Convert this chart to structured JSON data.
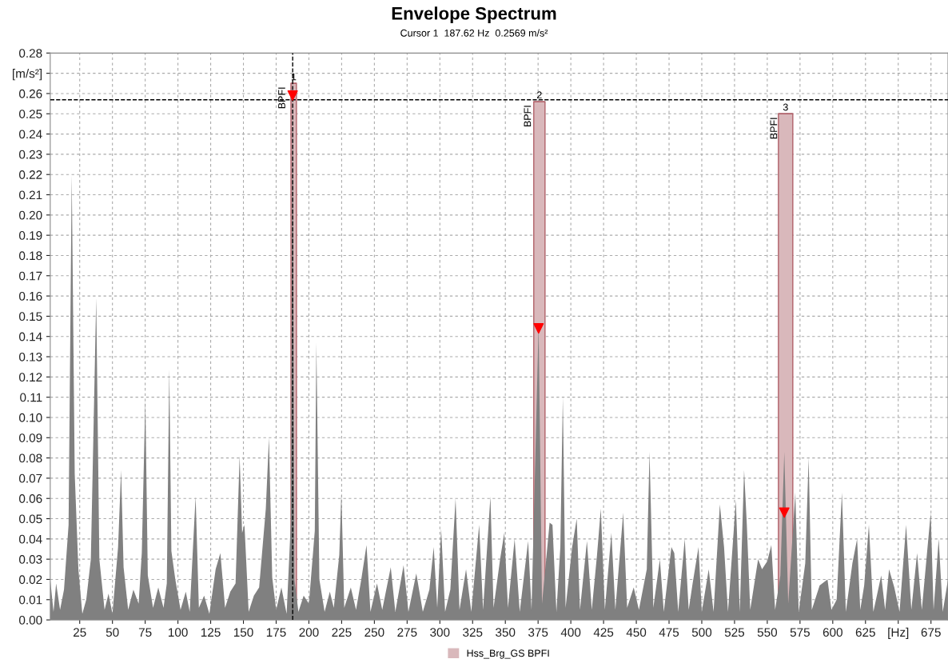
{
  "chart_data": {
    "type": "area",
    "title": "Envelope Spectrum",
    "subtitle": "Cursor 1  187.62 Hz  0.2569 m/s²",
    "xlim": [
      2.5,
      688
    ],
    "ylim": [
      0,
      0.28
    ],
    "xticks": [
      25,
      50,
      75,
      100,
      125,
      150,
      175,
      200,
      225,
      250,
      275,
      300,
      325,
      350,
      375,
      400,
      425,
      450,
      475,
      500,
      525,
      550,
      575,
      600,
      625,
      {
        "value": 650,
        "label": "[Hz]"
      },
      675
    ],
    "yticks": [
      {
        "value": 0.0,
        "label": "0.00"
      },
      {
        "value": 0.01,
        "label": "0.01"
      },
      {
        "value": 0.02,
        "label": "0.02"
      },
      {
        "value": 0.03,
        "label": "0.03"
      },
      {
        "value": 0.04,
        "label": "0.04"
      },
      {
        "value": 0.05,
        "label": "0.05"
      },
      {
        "value": 0.06,
        "label": "0.06"
      },
      {
        "value": 0.07,
        "label": "0.07"
      },
      {
        "value": 0.08,
        "label": "0.08"
      },
      {
        "value": 0.09,
        "label": "0.09"
      },
      {
        "value": 0.1,
        "label": "0.10"
      },
      {
        "value": 0.11,
        "label": "0.11"
      },
      {
        "value": 0.12,
        "label": "0.12"
      },
      {
        "value": 0.13,
        "label": "0.13"
      },
      {
        "value": 0.14,
        "label": "0.14"
      },
      {
        "value": 0.15,
        "label": "0.15"
      },
      {
        "value": 0.16,
        "label": "0.16"
      },
      {
        "value": 0.17,
        "label": "0.17"
      },
      {
        "value": 0.18,
        "label": "0.18"
      },
      {
        "value": 0.19,
        "label": "0.19"
      },
      {
        "value": 0.2,
        "label": "0.20"
      },
      {
        "value": 0.21,
        "label": "0.21"
      },
      {
        "value": 0.22,
        "label": "0.22"
      },
      {
        "value": 0.23,
        "label": "0.23"
      },
      {
        "value": 0.24,
        "label": "0.24"
      },
      {
        "value": 0.25,
        "label": "0.25"
      },
      {
        "value": 0.26,
        "label": "0.26"
      },
      {
        "value": 0.27,
        "label": "[m/s²]"
      },
      {
        "value": 0.28,
        "label": "0.28"
      }
    ],
    "grid": true,
    "legend": "bottom",
    "ref_lines": [
      {
        "axis": "y",
        "value": 0.2569,
        "color": "#000000",
        "line_style": "dashed"
      },
      {
        "axis": "x",
        "value": 187.62,
        "color": "#000000",
        "line_style": "dashed"
      }
    ],
    "annotations": [
      {
        "text": "BPFI",
        "x": 188.4,
        "y": 0.265
      },
      {
        "text": "BPFI",
        "x": 376,
        "y": 0.256
      },
      {
        "text": "BPFI",
        "x": 564,
        "y": 0.25
      },
      {
        "text": "1",
        "x": 188.4,
        "y": 0.265
      },
      {
        "text": "2",
        "x": 376,
        "y": 0.256
      },
      {
        "text": "3",
        "x": 564,
        "y": 0.25
      }
    ],
    "series": [
      {
        "color": "#808080",
        "x": [
          2.5,
          5,
          7,
          10,
          13,
          16.5,
          18.9,
          21.2,
          24,
          27,
          30,
          33.5,
          37.6,
          40,
          44,
          47,
          50,
          54.3,
          56.6,
          58.5,
          62,
          66,
          70,
          72.4,
          75.1,
          77,
          81,
          85,
          89,
          91.5,
          93.4,
          95,
          98,
          102,
          106,
          109,
          111.9,
          113.5,
          116,
          120,
          124,
          128.8,
          132.4,
          136,
          140,
          144,
          147.1,
          149,
          150.8,
          154,
          158,
          162,
          167.1,
          169.5,
          172,
          175,
          179,
          183,
          186.2,
          187.6,
          189,
          192,
          196,
          200,
          204.5,
          205.7,
          208,
          212,
          216,
          219,
          223.2,
          224.8,
          227,
          232,
          236,
          240,
          244,
          247,
          252,
          256,
          262.5,
          266,
          272.3,
          276,
          282,
          287,
          292,
          295.3,
          298,
          301,
          304,
          308,
          312,
          315,
          320,
          324,
          330,
          333,
          338.6,
          341,
          346,
          349.2,
          352,
          357.1,
          361,
          367.4,
          370,
          375.4,
          378,
          383.8,
          386,
          389,
          392,
          393.9,
          396,
          401,
          404.5,
          407,
          412.3,
          416,
          420,
          422.9,
          426,
          431,
          434,
          440,
          443,
          448,
          452,
          458,
          460.1,
          463,
          468,
          471,
          476.8,
          479,
          482,
          487,
          490,
          493,
          497.5,
          500,
          505.3,
          509,
          513.8,
          517,
          520,
          526,
          529,
          532.3,
          534.4,
          537,
          543,
          546,
          550,
          553.1,
          556,
          560,
          563,
          566,
          571.4,
          574,
          579,
          581.6,
          584,
          590,
          596,
          599,
          603,
          607,
          610,
          615,
          618.6,
          621,
          624,
          627.6,
          631,
          637,
          640,
          643,
          647,
          651,
          656,
          660,
          664.4,
          668,
          674.8,
          677,
          680.9,
          684,
          688
        ],
        "values": [
          0.02,
          0.004,
          0.018,
          0.005,
          0.015,
          0.047,
          0.22,
          0.072,
          0.025,
          0.003,
          0.01,
          0.03,
          0.159,
          0.03,
          0.005,
          0.013,
          0.003,
          0.036,
          0.074,
          0.026,
          0.005,
          0.015,
          0.008,
          0.033,
          0.109,
          0.022,
          0.006,
          0.016,
          0.006,
          0.018,
          0.124,
          0.034,
          0.02,
          0.005,
          0.014,
          0.004,
          0.041,
          0.061,
          0.006,
          0.012,
          0.003,
          0.025,
          0.033,
          0.006,
          0.014,
          0.018,
          0.081,
          0.043,
          0.047,
          0.004,
          0.012,
          0.016,
          0.055,
          0.09,
          0.021,
          0.005,
          0.016,
          0.003,
          0.048,
          0.26,
          0.02,
          0.004,
          0.012,
          0.008,
          0.044,
          0.137,
          0.02,
          0.004,
          0.014,
          0.006,
          0.032,
          0.063,
          0.006,
          0.016,
          0.005,
          0.02,
          0.037,
          0.004,
          0.018,
          0.005,
          0.026,
          0.004,
          0.027,
          0.004,
          0.023,
          0.004,
          0.015,
          0.036,
          0.006,
          0.045,
          0.004,
          0.015,
          0.06,
          0.005,
          0.025,
          0.004,
          0.047,
          0.005,
          0.061,
          0.006,
          0.03,
          0.043,
          0.006,
          0.04,
          0.004,
          0.039,
          0.005,
          0.146,
          0.008,
          0.048,
          0.047,
          0.004,
          0.036,
          0.11,
          0.006,
          0.036,
          0.05,
          0.005,
          0.039,
          0.005,
          0.032,
          0.055,
          0.005,
          0.043,
          0.005,
          0.053,
          0.006,
          0.016,
          0.005,
          0.025,
          0.083,
          0.006,
          0.03,
          0.004,
          0.036,
          0.033,
          0.004,
          0.04,
          0.005,
          0.018,
          0.036,
          0.004,
          0.025,
          0.004,
          0.057,
          0.036,
          0.004,
          0.059,
          0.004,
          0.074,
          0.047,
          0.005,
          0.03,
          0.025,
          0.029,
          0.037,
          0.005,
          0.022,
          0.083,
          0.008,
          0.063,
          0.004,
          0.028,
          0.08,
          0.005,
          0.017,
          0.02,
          0.005,
          0.01,
          0.063,
          0.004,
          0.028,
          0.04,
          0.005,
          0.017,
          0.047,
          0.004,
          0.022,
          0.005,
          0.025,
          0.016,
          0.004,
          0.047,
          0.005,
          0.033,
          0.005,
          0.053,
          0.005,
          0.04,
          0.004,
          0.02
        ]
      },
      {
        "type": "bar",
        "name": "Hss_Brg_GS BPFI",
        "color": "#d9b8bb",
        "x": [
          188.4,
          376,
          564
        ],
        "values": [
          0.265,
          0.256,
          0.25
        ],
        "xerrors": [
          2.1,
          4.3,
          5.5
        ]
      },
      {
        "type": "scatter",
        "color": "#ff0000",
        "marker": "triangle",
        "x": [
          187.6,
          375.4,
          563
        ],
        "values": [
          0.259,
          0.144,
          0.053
        ]
      }
    ]
  }
}
